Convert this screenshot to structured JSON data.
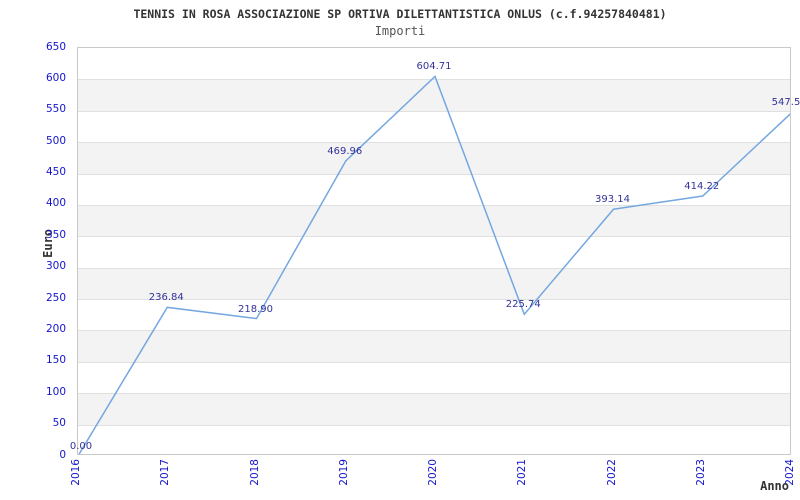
{
  "chart_data": {
    "type": "line",
    "title": "TENNIS IN ROSA ASSOCIAZIONE SP ORTIVA DILETTANTISTICA ONLUS (c.f.94257840481)",
    "subtitle": "Importi",
    "x": [
      "2016",
      "2017",
      "2018",
      "2019",
      "2020",
      "2021",
      "2022",
      "2023",
      "2024"
    ],
    "series": [
      {
        "name": "Importi",
        "values": [
          0,
          236.84,
          218.9,
          469.96,
          604.71,
          225.74,
          393.14,
          414.22,
          547.5
        ]
      }
    ],
    "point_labels": [
      "0.00",
      "236.84",
      "218.90",
      "469.96",
      "604.71",
      "225.74",
      "393.14",
      "414.22",
      "547.5"
    ],
    "xlabel": "Anno",
    "ylabel": "Euro",
    "ylim": [
      0,
      650
    ],
    "ytick_step": 50,
    "yticks": [
      650,
      600,
      550,
      500,
      450,
      400,
      350,
      300,
      250,
      200,
      150,
      100,
      50,
      0
    ],
    "grid": true,
    "legend": "none",
    "band_fill_alternating": true,
    "colors": {
      "line": "#74a7e0",
      "axis_tick_label": "#1414cc",
      "point_label": "#333399",
      "band": "#f3f3f3",
      "grid_line": "#e0e0e0",
      "plot_border": "#c9c9c9",
      "title_text": "#333333",
      "subtitle_text": "#555555"
    }
  }
}
